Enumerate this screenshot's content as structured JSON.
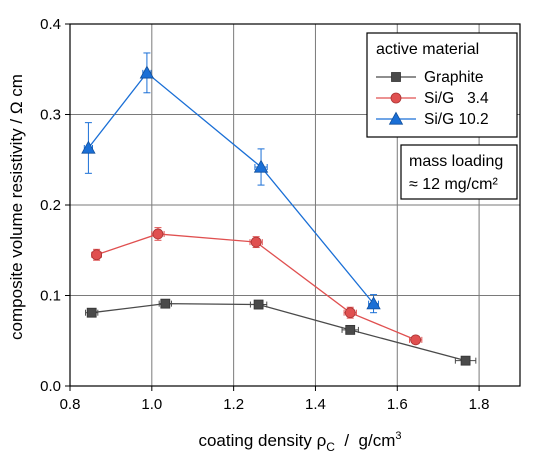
{
  "chart_data": {
    "type": "line",
    "xlabel": {
      "prefix": "coating density ρ",
      "subscript": "C",
      "unit_prefix": "  /  g/cm",
      "unit_sup": "3"
    },
    "ylabel": "composite volume resistivity  /  Ω cm",
    "xlim": [
      0.8,
      1.9
    ],
    "ylim": [
      0.0,
      0.4
    ],
    "xticks": [
      0.8,
      1.0,
      1.2,
      1.4,
      1.6,
      1.8
    ],
    "xtick_labels": [
      "0.8",
      "1.0",
      "1.2",
      "1.4",
      "1.6",
      "1.8"
    ],
    "yticks": [
      0.0,
      0.1,
      0.2,
      0.3,
      0.4
    ],
    "ytick_labels": [
      "0.0",
      "0.1",
      "0.2",
      "0.3",
      "0.4"
    ],
    "grid": true,
    "legend": {
      "title": "active material",
      "position": "top-right",
      "labels": [
        "Graphite",
        "Si/G   3.4",
        "Si/G 10.2"
      ]
    },
    "annotation": {
      "line1": "mass loading",
      "line2": "≈ 12 mg/cm²"
    },
    "series": [
      {
        "name": "Graphite",
        "color": "#4a4a4a",
        "marker": "square",
        "x": [
          0.853,
          1.033,
          1.261,
          1.485,
          1.767
        ],
        "y": [
          0.081,
          0.091,
          0.09,
          0.062,
          0.028
        ],
        "xerr": [
          0.015,
          0.015,
          0.02,
          0.02,
          0.025
        ],
        "yerr": [
          0.003,
          0.003,
          0.003,
          0.003,
          0.002
        ]
      },
      {
        "name": "Si/G   3.4",
        "color": "#e05050",
        "marker": "circle",
        "x": [
          0.865,
          1.015,
          1.255,
          1.485,
          1.645
        ],
        "y": [
          0.145,
          0.168,
          0.159,
          0.081,
          0.051
        ],
        "xerr": [
          0.012,
          0.015,
          0.015,
          0.015,
          0.015
        ],
        "yerr": [
          0.006,
          0.007,
          0.006,
          0.006,
          0.004
        ]
      },
      {
        "name": "Si/G 10.2",
        "color": "#1a6fd6",
        "marker": "triangle",
        "x": [
          0.845,
          0.988,
          1.267,
          1.542
        ],
        "y": [
          0.263,
          0.346,
          0.242,
          0.091
        ],
        "xerr": [
          0.01,
          0.01,
          0.015,
          0.012
        ],
        "yerr": [
          0.028,
          0.022,
          0.02,
          0.01
        ]
      }
    ]
  }
}
